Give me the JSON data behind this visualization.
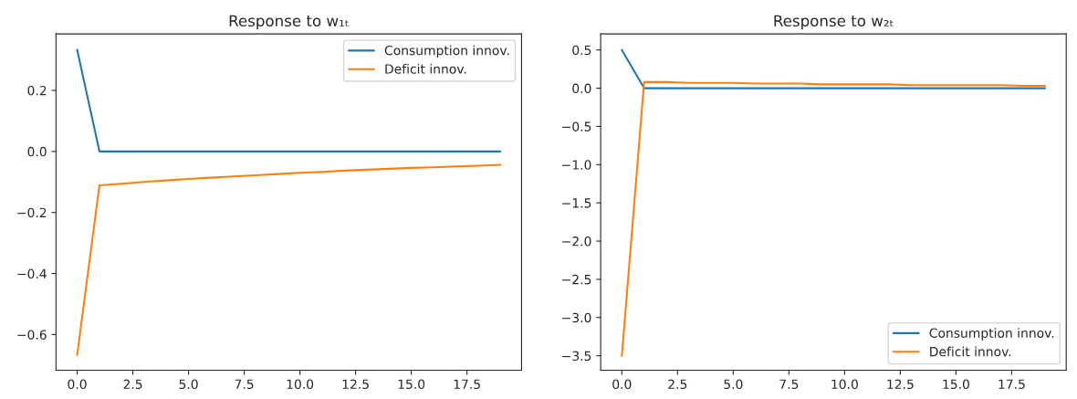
{
  "chart_data": [
    {
      "type": "line",
      "title": "Response to w₁ₜ",
      "x": [
        0,
        1,
        2,
        3,
        4,
        5,
        6,
        7,
        8,
        9,
        10,
        11,
        12,
        13,
        14,
        15,
        16,
        17,
        18,
        19
      ],
      "series": [
        {
          "name": "Consumption innov.",
          "color": "#1f77b4",
          "values": [
            0.333,
            0,
            0,
            0,
            0,
            0,
            0,
            0,
            0,
            0,
            0,
            0,
            0,
            0,
            0,
            0,
            0,
            0,
            0,
            0
          ]
        },
        {
          "name": "Deficit innov.",
          "color": "#ff7f0e",
          "values": [
            -0.667,
            -0.111,
            -0.106,
            -0.1,
            -0.095,
            -0.09,
            -0.086,
            -0.082,
            -0.078,
            -0.074,
            -0.07,
            -0.067,
            -0.063,
            -0.06,
            -0.057,
            -0.054,
            -0.052,
            -0.049,
            -0.047,
            -0.044
          ]
        }
      ],
      "xlim": [
        -0.95,
        19.95
      ],
      "xticks": [
        {
          "value": 0,
          "label": "0.0"
        },
        {
          "value": 2.5,
          "label": "2.5"
        },
        {
          "value": 5,
          "label": "5.0"
        },
        {
          "value": 7.5,
          "label": "7.5"
        },
        {
          "value": 10,
          "label": "10.0"
        },
        {
          "value": 12.5,
          "label": "12.5"
        },
        {
          "value": 15,
          "label": "15.0"
        },
        {
          "value": 17.5,
          "label": "17.5"
        }
      ],
      "ylim": [
        -0.717,
        0.385
      ],
      "yticks": [
        {
          "value": -0.6,
          "label": "−0.6"
        },
        {
          "value": -0.4,
          "label": "−0.4"
        },
        {
          "value": -0.2,
          "label": "−0.2"
        },
        {
          "value": 0,
          "label": "0.0"
        },
        {
          "value": 0.2,
          "label": "0.2"
        }
      ],
      "legend": "top right",
      "grid": false
    },
    {
      "type": "line",
      "title": "Response to w₂ₜ",
      "x": [
        0,
        1,
        2,
        3,
        4,
        5,
        6,
        7,
        8,
        9,
        10,
        11,
        12,
        13,
        14,
        15,
        16,
        17,
        18,
        19
      ],
      "series": [
        {
          "name": "Consumption innov.",
          "color": "#1f77b4",
          "values": [
            0.5,
            0,
            0,
            0,
            0,
            0,
            0,
            0,
            0,
            0,
            0,
            0,
            0,
            0,
            0,
            0,
            0,
            0,
            0,
            0
          ]
        },
        {
          "name": "Deficit innov.",
          "color": "#ff7f0e",
          "values": [
            -3.5,
            0.08,
            0.08,
            0.07,
            0.07,
            0.07,
            0.06,
            0.06,
            0.06,
            0.05,
            0.05,
            0.05,
            0.05,
            0.04,
            0.04,
            0.04,
            0.04,
            0.04,
            0.03,
            0.03
          ]
        }
      ],
      "xlim": [
        -0.95,
        19.95
      ],
      "xticks": [
        {
          "value": 0,
          "label": "0.0"
        },
        {
          "value": 2.5,
          "label": "2.5"
        },
        {
          "value": 5,
          "label": "5.0"
        },
        {
          "value": 7.5,
          "label": "7.5"
        },
        {
          "value": 10,
          "label": "10.0"
        },
        {
          "value": 12.5,
          "label": "12.5"
        },
        {
          "value": 15,
          "label": "15.0"
        },
        {
          "value": 17.5,
          "label": "17.5"
        }
      ],
      "ylim": [
        -3.69,
        0.71
      ],
      "yticks": [
        {
          "value": -3.5,
          "label": "−3.5"
        },
        {
          "value": -3,
          "label": "−3.0"
        },
        {
          "value": -2.5,
          "label": "−2.5"
        },
        {
          "value": -2,
          "label": "−2.0"
        },
        {
          "value": -1.5,
          "label": "−1.5"
        },
        {
          "value": -1,
          "label": "−1.0"
        },
        {
          "value": -0.5,
          "label": "−0.5"
        },
        {
          "value": 0,
          "label": "0.0"
        },
        {
          "value": 0.5,
          "label": "0.5"
        }
      ],
      "legend": "bottom right",
      "grid": false
    }
  ]
}
